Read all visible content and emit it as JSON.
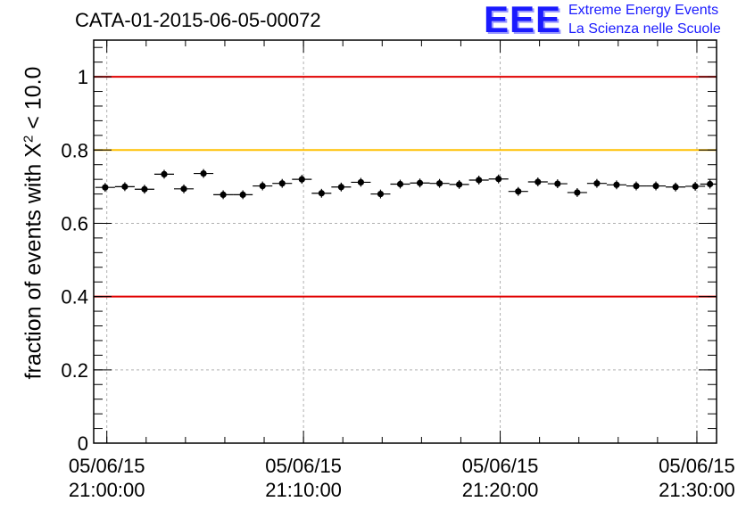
{
  "header": {
    "run_id": "CATA-01-2015-06-05-00072",
    "logo_mark": "EEE",
    "logo_line1": "Extreme Energy Events",
    "logo_line2": "La Scienza nelle Scuole"
  },
  "axis": {
    "ylabel_prefix": "fraction of events with X",
    "ylabel_sup": "2",
    "ylabel_suffix": " < 10.0"
  },
  "colors": {
    "limit_red": "#e00000",
    "limit_yellow": "#ffc000",
    "markers": "#000000",
    "grid": "#b0b0b0"
  },
  "chart_data": {
    "type": "scatter",
    "title": "CATA-01-2015-06-05-00072",
    "xlabel": "",
    "ylabel": "fraction of events with X^2 < 10.0",
    "xlim": [
      "2015-06-05 20:59:20",
      "2015-06-05 21:31:00"
    ],
    "ylim": [
      0,
      1.1
    ],
    "yticks": [
      "0",
      "0.2",
      "0.4",
      "0.6",
      "0.8",
      "1"
    ],
    "xticks": [
      {
        "date": "05/06/15",
        "time": "21:00:00"
      },
      {
        "date": "05/06/15",
        "time": "21:10:00"
      },
      {
        "date": "05/06/15",
        "time": "21:20:00"
      },
      {
        "date": "05/06/15",
        "time": "21:30:00"
      }
    ],
    "grid": true,
    "reference_lines": [
      {
        "y": 1.0,
        "color": "red"
      },
      {
        "y": 0.8,
        "color": "yellow"
      },
      {
        "y": 0.4,
        "color": "red"
      }
    ],
    "series": [
      {
        "x": [
          "20:59:55",
          "21:00:55",
          "21:01:55",
          "21:02:55",
          "21:03:55",
          "21:04:55",
          "21:05:55",
          "21:06:55",
          "21:07:55",
          "21:08:55",
          "21:09:55",
          "21:10:55",
          "21:11:55",
          "21:12:55",
          "21:13:55",
          "21:14:55",
          "21:15:55",
          "21:16:55",
          "21:17:55",
          "21:18:55",
          "21:19:55",
          "21:20:55",
          "21:21:55",
          "21:22:55",
          "21:23:55",
          "21:24:55",
          "21:25:55",
          "21:26:55",
          "21:27:55",
          "21:28:55",
          "21:29:55",
          "21:30:40"
        ],
        "y": [
          0.698,
          0.7,
          0.693,
          0.734,
          0.694,
          0.736,
          0.678,
          0.678,
          0.702,
          0.709,
          0.72,
          0.682,
          0.699,
          0.712,
          0.68,
          0.707,
          0.71,
          0.709,
          0.706,
          0.718,
          0.721,
          0.687,
          0.713,
          0.708,
          0.684,
          0.709,
          0.705,
          0.702,
          0.702,
          0.699,
          0.701,
          0.707
        ],
        "x_halfwidth_seconds": 30,
        "y_error": 0.012
      }
    ]
  }
}
